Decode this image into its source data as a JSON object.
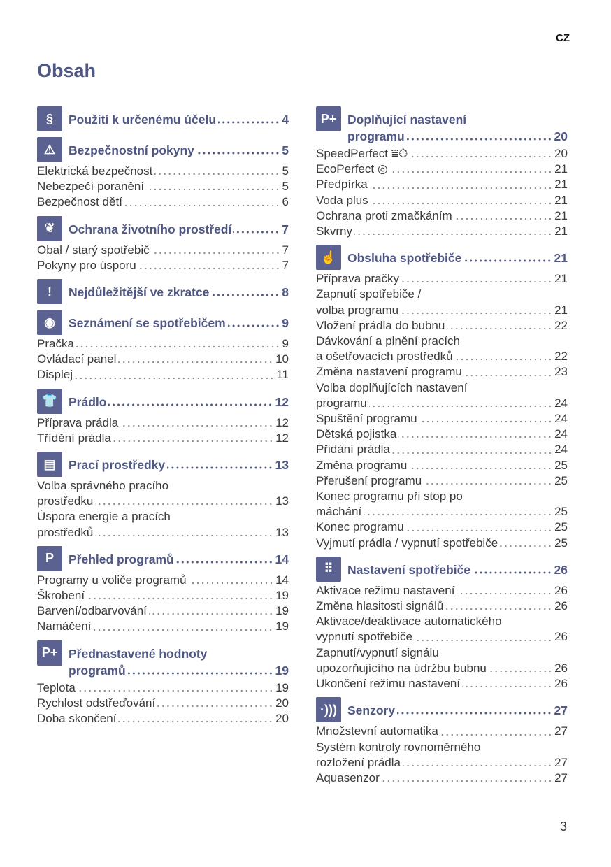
{
  "lang": "CZ",
  "title": "Obsah",
  "page_number": "3",
  "accent_color": "#4f5785",
  "columns": [
    [
      {
        "icon": "paragraph-hand-icon",
        "glyph": "§",
        "heading": [
          "Použití k určenému účelu"
        ],
        "page": "4",
        "entries": []
      },
      {
        "icon": "warning-icon",
        "glyph": "⚠",
        "heading": [
          "Bezpečnostní pokyny"
        ],
        "page": "5",
        "entries": [
          {
            "lines": [
              "Elektrická bezpečnost"
            ],
            "page": "5"
          },
          {
            "lines": [
              "Nebezpečí poranění"
            ],
            "page": "5"
          },
          {
            "lines": [
              "Bezpečnost dětí"
            ],
            "page": "6"
          }
        ]
      },
      {
        "icon": "leaf-icon",
        "glyph": "❦",
        "heading": [
          "Ochrana životního prostředí"
        ],
        "page": "7",
        "entries": [
          {
            "lines": [
              "Obal / starý spotřebič"
            ],
            "page": "7"
          },
          {
            "lines": [
              "Pokyny pro úsporu"
            ],
            "page": "7"
          }
        ]
      },
      {
        "icon": "speech-bubble-icon",
        "glyph": "!",
        "heading": [
          "Nejdůležitější ve zkratce"
        ],
        "page": "8",
        "entries": []
      },
      {
        "icon": "eye-icon",
        "glyph": "◉",
        "heading": [
          "Seznámení se spotřebičem"
        ],
        "page": "9",
        "entries": [
          {
            "lines": [
              "Pračka"
            ],
            "page": "9"
          },
          {
            "lines": [
              "Ovládací panel"
            ],
            "page": "10"
          },
          {
            "lines": [
              "Displej"
            ],
            "page": "11"
          }
        ]
      },
      {
        "icon": "shirt-icon",
        "glyph": "👕",
        "heading": [
          "Prádlo"
        ],
        "page": "12",
        "entries": [
          {
            "lines": [
              "Příprava prádla"
            ],
            "page": "12"
          },
          {
            "lines": [
              "Třídění prádla"
            ],
            "page": "12"
          }
        ]
      },
      {
        "icon": "detergent-cup-icon",
        "glyph": "▤",
        "heading": [
          "Prací prostředky"
        ],
        "page": "13",
        "entries": [
          {
            "lines": [
              "Volba správného pracího",
              "prostředku"
            ],
            "page": "13"
          },
          {
            "lines": [
              "Úspora energie a pracích",
              "prostředků"
            ],
            "page": "13"
          }
        ]
      },
      {
        "icon": "program-overview-icon",
        "glyph": "P",
        "heading": [
          "Přehled programů"
        ],
        "page": "14",
        "entries": [
          {
            "lines": [
              "Programy u voliče programů"
            ],
            "page": "14"
          },
          {
            "lines": [
              "Škrobení"
            ],
            "page": "19"
          },
          {
            "lines": [
              "Barvení/odbarvování"
            ],
            "page": "19"
          },
          {
            "lines": [
              "Namáčení"
            ],
            "page": "19"
          }
        ]
      },
      {
        "icon": "p-plus-icon",
        "glyph": "P+",
        "heading": [
          "Přednastavené hodnoty",
          "programů"
        ],
        "page": "19",
        "entries": [
          {
            "lines": [
              "Teplota"
            ],
            "page": "19"
          },
          {
            "lines": [
              "Rychlost odstřeďování"
            ],
            "page": "20"
          },
          {
            "lines": [
              "Doba skončení"
            ],
            "page": "20"
          }
        ]
      }
    ],
    [
      {
        "icon": "p-plus-icon",
        "glyph": "P+",
        "heading": [
          "Doplňující nastavení",
          "programu"
        ],
        "page": "20",
        "entries": [
          {
            "lines": [
              "SpeedPerfect ⩸⏱"
            ],
            "page": "20"
          },
          {
            "lines": [
              "EcoPerfect ◎"
            ],
            "page": "21"
          },
          {
            "lines": [
              "Předpírka"
            ],
            "page": "21"
          },
          {
            "lines": [
              "Voda plus"
            ],
            "page": "21"
          },
          {
            "lines": [
              "Ochrana proti zmačkáním"
            ],
            "page": "21"
          },
          {
            "lines": [
              "Skvrny"
            ],
            "page": "21"
          }
        ]
      },
      {
        "icon": "hand-operation-icon",
        "glyph": "☝",
        "heading": [
          "Obsluha spotřebiče"
        ],
        "page": "21",
        "entries": [
          {
            "lines": [
              "Příprava pračky"
            ],
            "page": "21"
          },
          {
            "lines": [
              "Zapnutí spotřebiče /",
              "volba programu"
            ],
            "page": "21"
          },
          {
            "lines": [
              "Vložení prádla do bubnu"
            ],
            "page": "22"
          },
          {
            "lines": [
              "Dávkování a plnění pracích",
              "a ošetřovacích prostředků"
            ],
            "page": "22"
          },
          {
            "lines": [
              "Změna nastavení programu"
            ],
            "page": "23"
          },
          {
            "lines": [
              "Volba doplňujících nastavení",
              "programu"
            ],
            "page": "24"
          },
          {
            "lines": [
              "Spuštění programu"
            ],
            "page": "24"
          },
          {
            "lines": [
              "Dětská pojistka"
            ],
            "page": "24"
          },
          {
            "lines": [
              "Přidání prádla"
            ],
            "page": "24"
          },
          {
            "lines": [
              "Změna programu"
            ],
            "page": "25"
          },
          {
            "lines": [
              "Přerušení programu"
            ],
            "page": "25"
          },
          {
            "lines": [
              "Konec programu při stop po",
              "máchání"
            ],
            "page": "25"
          },
          {
            "lines": [
              "Konec programu"
            ],
            "page": "25"
          },
          {
            "lines": [
              "Vyjmutí prádla / vypnutí spotřebiče"
            ],
            "page": "25"
          }
        ]
      },
      {
        "icon": "settings-grid-icon",
        "glyph": "⠿",
        "heading": [
          "Nastavení spotřebiče"
        ],
        "page": "26",
        "entries": [
          {
            "lines": [
              "Aktivace režimu nastavení"
            ],
            "page": "26"
          },
          {
            "lines": [
              "Změna hlasitosti signálů"
            ],
            "page": "26"
          },
          {
            "lines": [
              "Aktivace/deaktivace automatického",
              "vypnutí spotřebiče"
            ],
            "page": "26"
          },
          {
            "lines": [
              "Zapnutí/vypnutí signálu",
              "upozorňujícího na údržbu bubnu"
            ],
            "page": "26"
          },
          {
            "lines": [
              "Ukončení režimu nastavení"
            ],
            "page": "26"
          }
        ]
      },
      {
        "icon": "sensor-waves-icon",
        "glyph": "·)))",
        "heading": [
          "Senzory"
        ],
        "page": "27",
        "entries": [
          {
            "lines": [
              "Množstevní automatika"
            ],
            "page": "27"
          },
          {
            "lines": [
              "Systém kontroly rovnoměrného",
              "rozložení prádla"
            ],
            "page": "27"
          },
          {
            "lines": [
              "Aquasenzor"
            ],
            "page": "27"
          }
        ]
      }
    ]
  ]
}
